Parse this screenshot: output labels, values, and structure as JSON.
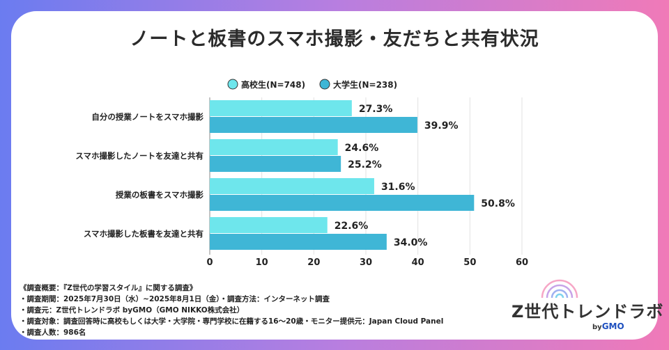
{
  "chart_data": {
    "type": "bar",
    "orientation": "horizontal",
    "title": "ノートと板書のスマホ撮影・友だちと共有状況",
    "categories": [
      "自分の授業ノートをスマホ撮影",
      "スマホ撮影したノートを友達と共有",
      "授業の板書をスマホ撮影",
      "スマホ撮影した板書を友達と共有"
    ],
    "series": [
      {
        "name": "高校生(N=748)",
        "color": "#6ee6ec",
        "values": [
          27.3,
          24.6,
          31.6,
          22.6
        ],
        "labels": [
          "27.3%",
          "24.6%",
          "31.6%",
          "22.6%"
        ]
      },
      {
        "name": "大学生(N=238)",
        "color": "#3fb6d6",
        "values": [
          39.9,
          25.2,
          50.8,
          34.0
        ],
        "labels": [
          "39.9%",
          "25.2%",
          "50.8%",
          "34.0%"
        ]
      }
    ],
    "xlim": [
      0,
      60
    ],
    "xticks": [
      "0",
      "10",
      "20",
      "30",
      "40",
      "50",
      "60"
    ],
    "grid": true,
    "legend": "top"
  },
  "notes": [
    "《調査概要：『Z世代の学習スタイル』に関する調査》",
    "・調査期間：2025年7月30日（水）~2025年8月1日（金）・調査方法：インターネット調査",
    "・調査元：Z世代トレンドラボ byGMO（GMO NIKKO株式会社）",
    "・調査対象：調査回答時に高校もしくは大学・大学院・専門学校に在籍する16～20歳・モニター提供元：Japan Cloud Panel",
    "・調査人数：986名"
  ],
  "logo": {
    "name": "Z世代トレンドラボ",
    "by": "by",
    "brand": "GMO",
    "icon": "signal-waves-icon"
  },
  "colors": {
    "background_left": "#6b7cf0",
    "background_right": "#f07ab8",
    "highschool": "#6ee6ec",
    "university": "#3fb6d6"
  }
}
